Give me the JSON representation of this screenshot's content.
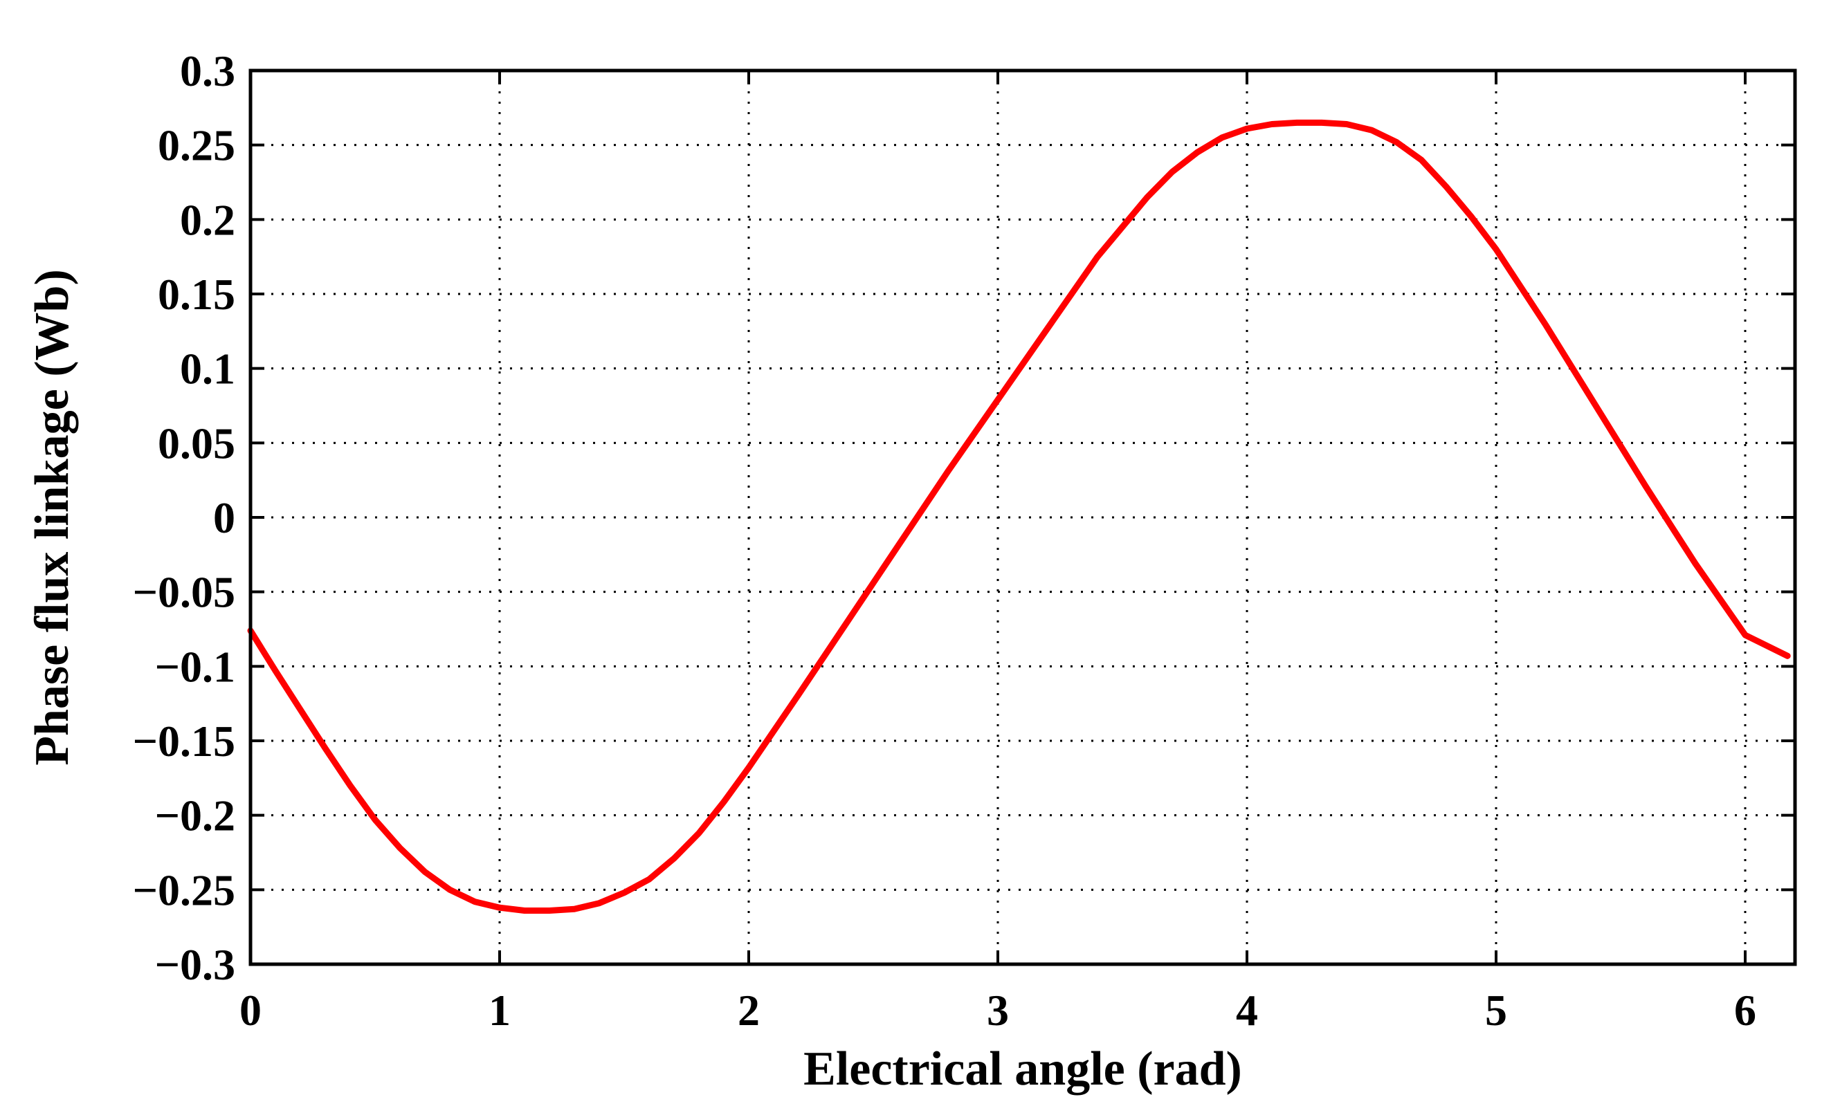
{
  "chart_data": {
    "type": "line",
    "xlabel": "Electrical angle (rad)",
    "ylabel": "Phase flux linkage (Wb)",
    "xlim": [
      0,
      6.2
    ],
    "ylim": [
      -0.3,
      0.3
    ],
    "xticks": [
      0,
      1,
      2,
      3,
      4,
      5,
      6
    ],
    "xtick_labels": [
      "0",
      "1",
      "2",
      "3",
      "4",
      "5",
      "6"
    ],
    "yticks": [
      -0.3,
      -0.25,
      -0.2,
      -0.15,
      -0.1,
      -0.05,
      0,
      0.05,
      0.1,
      0.15,
      0.2,
      0.25,
      0.3
    ],
    "ytick_labels": [
      "−0.3",
      "−0.25",
      "−0.2",
      "−0.15",
      "−0.1",
      "−0.05",
      "0",
      "0.05",
      "0.1",
      "0.15",
      "0.2",
      "0.25",
      "0.3"
    ],
    "grid": true,
    "series": [
      {
        "color": "#0000ff",
        "line_width": "thin",
        "x": [
          0,
          0.1,
          0.2,
          0.3,
          0.4,
          0.5,
          0.6,
          0.7,
          0.8,
          0.9,
          1.0,
          1.1,
          1.2,
          1.3,
          1.4,
          1.5,
          1.6,
          1.7,
          1.8,
          1.9,
          2.0,
          2.2,
          2.4,
          2.6,
          2.8,
          3.0,
          3.2,
          3.4,
          3.6,
          3.7,
          3.8,
          3.9,
          4.0,
          4.1,
          4.2,
          4.3,
          4.4,
          4.5,
          4.6,
          4.7,
          4.8,
          4.9,
          5.0,
          5.2,
          5.4,
          5.6,
          5.8,
          6.0,
          6.17
        ],
        "y": [
          -0.076,
          -0.103,
          -0.129,
          -0.155,
          -0.18,
          -0.203,
          -0.222,
          -0.238,
          -0.25,
          -0.258,
          -0.262,
          -0.264,
          -0.264,
          -0.263,
          -0.259,
          -0.252,
          -0.243,
          -0.229,
          -0.212,
          -0.191,
          -0.168,
          -0.119,
          -0.069,
          -0.019,
          0.031,
          0.079,
          0.127,
          0.175,
          0.215,
          0.232,
          0.245,
          0.255,
          0.261,
          0.264,
          0.265,
          0.265,
          0.264,
          0.26,
          0.252,
          0.24,
          0.222,
          0.202,
          0.18,
          0.129,
          0.075,
          0.021,
          -0.031,
          -0.079,
          -0.093
        ]
      },
      {
        "color": "#ff0000",
        "line_width": "thick",
        "x": [
          0,
          0.1,
          0.2,
          0.3,
          0.4,
          0.5,
          0.6,
          0.7,
          0.8,
          0.9,
          1.0,
          1.1,
          1.2,
          1.3,
          1.4,
          1.5,
          1.6,
          1.7,
          1.8,
          1.9,
          2.0,
          2.2,
          2.4,
          2.6,
          2.8,
          3.0,
          3.2,
          3.4,
          3.6,
          3.7,
          3.8,
          3.9,
          4.0,
          4.1,
          4.2,
          4.3,
          4.4,
          4.5,
          4.6,
          4.7,
          4.8,
          4.9,
          5.0,
          5.2,
          5.4,
          5.6,
          5.8,
          6.0,
          6.17
        ],
        "y": [
          -0.076,
          -0.103,
          -0.129,
          -0.155,
          -0.18,
          -0.203,
          -0.222,
          -0.238,
          -0.25,
          -0.258,
          -0.262,
          -0.264,
          -0.264,
          -0.263,
          -0.259,
          -0.252,
          -0.243,
          -0.229,
          -0.212,
          -0.191,
          -0.168,
          -0.119,
          -0.069,
          -0.019,
          0.031,
          0.079,
          0.127,
          0.175,
          0.215,
          0.232,
          0.245,
          0.255,
          0.261,
          0.264,
          0.265,
          0.265,
          0.264,
          0.26,
          0.252,
          0.24,
          0.222,
          0.202,
          0.18,
          0.129,
          0.075,
          0.021,
          -0.031,
          -0.079,
          -0.093
        ]
      }
    ]
  }
}
